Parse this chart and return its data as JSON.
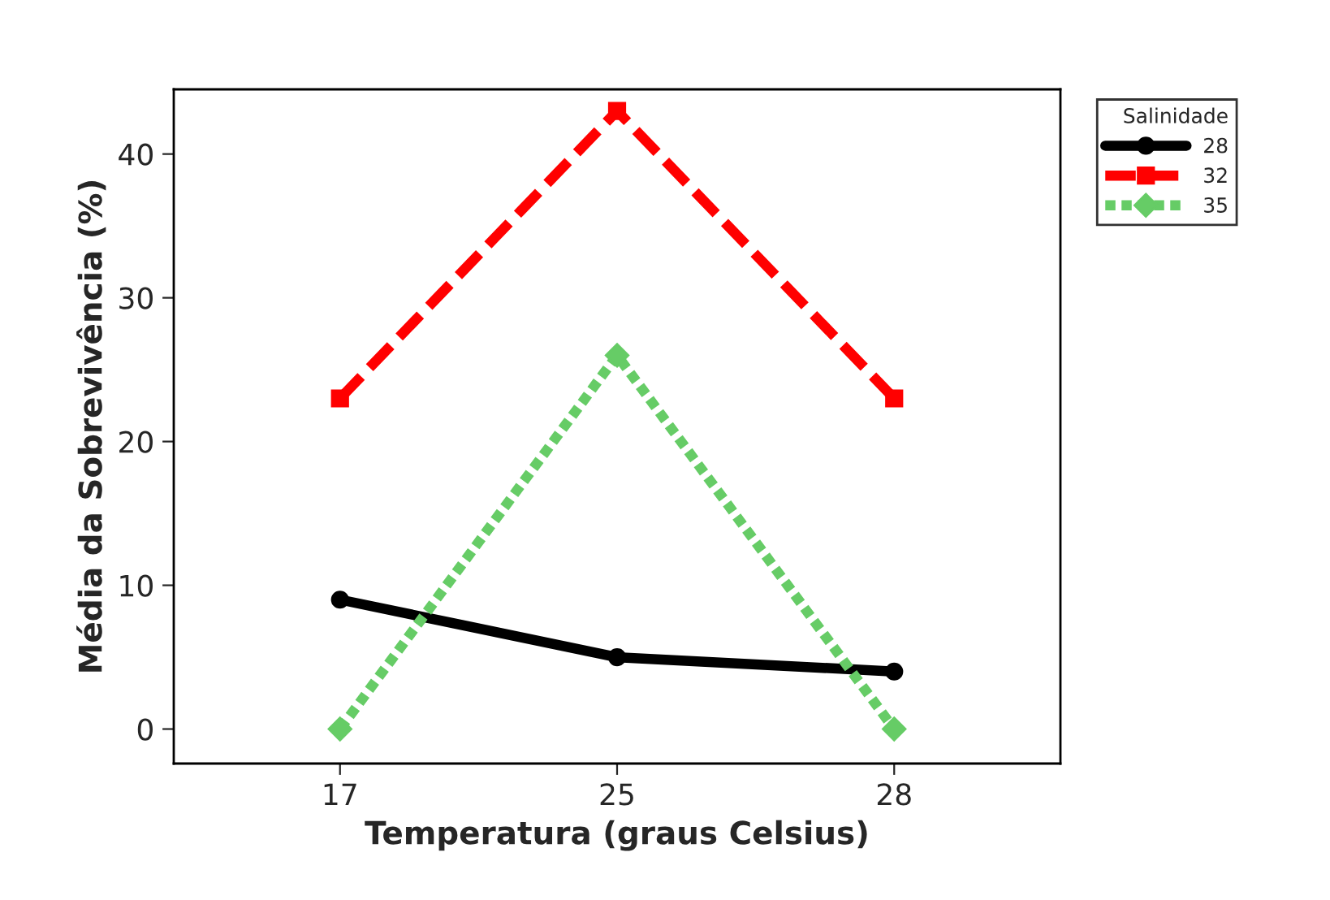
{
  "chart_data": {
    "type": "line",
    "xlabel": "Temperatura (graus Celsius)",
    "ylabel": "Média da Sobrevivência (%)",
    "legend_title": "Salinidade",
    "categories": [
      "17",
      "25",
      "28"
    ],
    "series": [
      {
        "name": "28",
        "color": "#000000",
        "values": [
          9,
          5,
          4
        ],
        "marker": "circle",
        "line_style": "solid"
      },
      {
        "name": "32",
        "color": "#ff0000",
        "values": [
          23,
          43,
          23
        ],
        "marker": "square",
        "line_style": "dashed"
      },
      {
        "name": "35",
        "color": "#66cc66",
        "values": [
          0,
          26,
          0
        ],
        "marker": "diamond",
        "line_style": "dotted"
      }
    ],
    "ylim": [
      -2.4,
      44.5
    ],
    "yticks": [
      0,
      10,
      20,
      30,
      40
    ],
    "grid": false,
    "legend": "top right"
  }
}
